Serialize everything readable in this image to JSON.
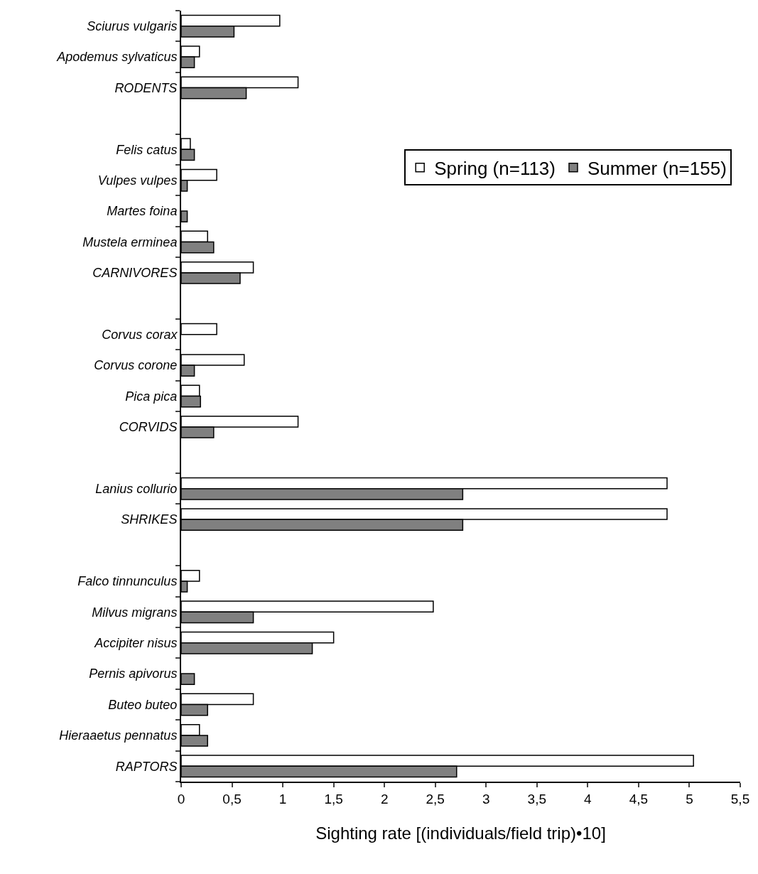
{
  "chart_data": {
    "type": "bar",
    "orientation": "horizontal",
    "xlabel": "Sighting rate [(individuals/field trip)•10]",
    "categories": [
      "Sciurus vulgaris",
      "Apodemus sylvaticus",
      "RODENTS",
      null,
      "Felis catus",
      "Vulpes vulpes",
      "Martes foina",
      "Mustela erminea",
      "CARNIVORES",
      null,
      "Corvus corax",
      "Corvus corone",
      "Pica pica",
      "CORVIDS",
      null,
      "Lanius collurio",
      "SHRIKES",
      null,
      "Falco tinnunculus",
      "Milvus migrans",
      "Accipiter nisus",
      "Pernis apivorus",
      "Buteo buteo",
      "Hieraaetus pennatus",
      "RAPTORS"
    ],
    "series": [
      {
        "name": "Spring (n=113)",
        "color": "#ffffff",
        "values": [
          0.97,
          0.18,
          1.15,
          null,
          0.09,
          0.35,
          null,
          0.26,
          0.71,
          null,
          0.35,
          0.62,
          0.18,
          1.15,
          null,
          4.78,
          4.78,
          null,
          0.18,
          2.48,
          1.5,
          null,
          0.71,
          0.18,
          5.04
        ]
      },
      {
        "name": "Summer (n=155)",
        "color": "#808080",
        "values": [
          0.52,
          0.13,
          0.64,
          null,
          0.13,
          0.06,
          0.06,
          0.32,
          0.58,
          null,
          null,
          0.13,
          0.19,
          0.32,
          null,
          2.77,
          2.77,
          null,
          0.06,
          0.71,
          1.29,
          0.13,
          0.26,
          0.26,
          2.71
        ]
      }
    ],
    "xlim": [
      0,
      5.5
    ],
    "xticks": [
      0,
      {
        "value": 0.5,
        "label": "0,5"
      },
      1,
      {
        "value": 1.5,
        "label": "1,5"
      },
      2,
      {
        "value": 2.5,
        "label": "2,5"
      },
      3,
      {
        "value": 3.5,
        "label": "3,5"
      },
      4,
      {
        "value": 4.5,
        "label": "4,5"
      },
      5,
      {
        "value": 5.5,
        "label": "5,5"
      }
    ],
    "legend": "top right"
  }
}
